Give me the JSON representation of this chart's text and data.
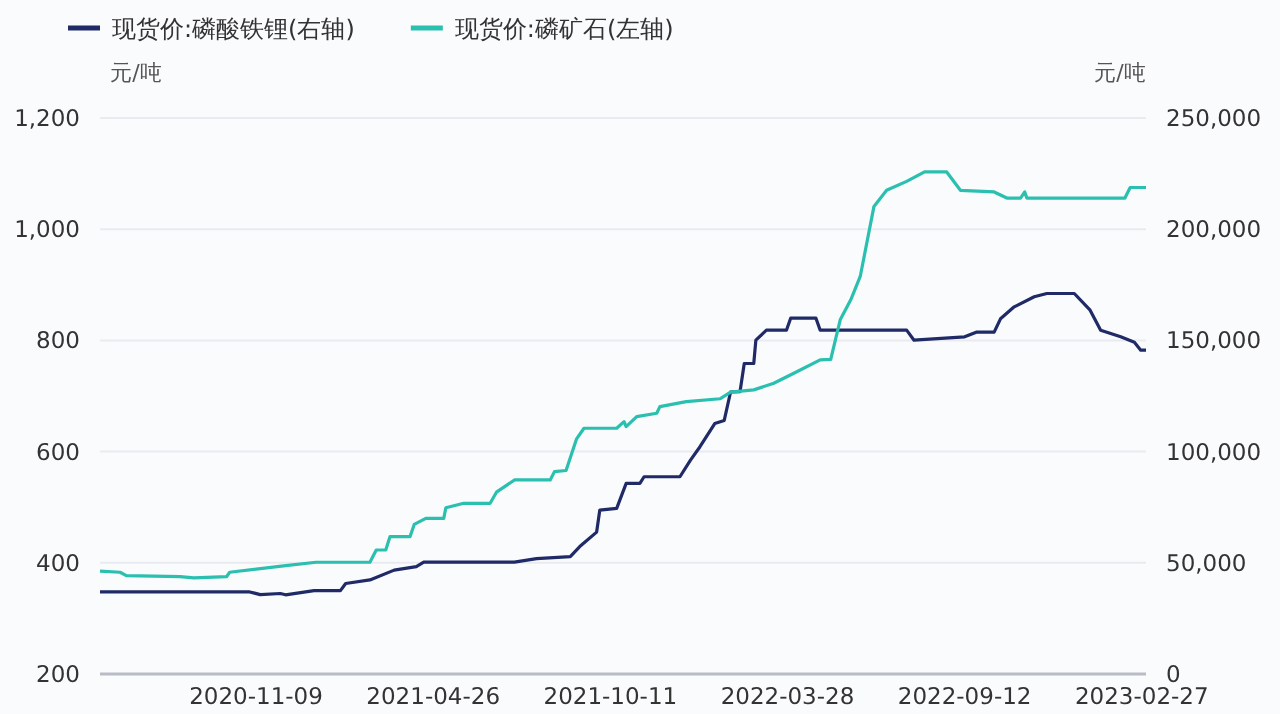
{
  "chart_data": {
    "type": "line",
    "ylabel": "元/吨",
    "y2label": "元/吨",
    "legend": "top left",
    "grid": "y",
    "line_style": "solid",
    "marker": "none",
    "xlim": [
      "2020-06-14",
      "2023-03-03"
    ],
    "xticks": [
      "2020-11-09",
      "2021-04-26",
      "2021-10-11",
      "2022-03-28",
      "2022-09-12",
      "2023-02-27"
    ],
    "ylim": [
      200,
      1200
    ],
    "yticks": [
      200,
      400,
      600,
      800,
      {
        "value": 1000,
        "label": "1,000"
      },
      {
        "value": 1200,
        "label": "1,200"
      }
    ],
    "y2lim": [
      0,
      250000
    ],
    "y2ticks": [
      0,
      {
        "value": 50000,
        "label": "50,000"
      },
      {
        "value": 100000,
        "label": "100,000"
      },
      {
        "value": 150000,
        "label": "150,000"
      },
      {
        "value": 200000,
        "label": "200,000"
      },
      {
        "value": 250000,
        "label": "250,000"
      }
    ],
    "series": [
      {
        "name": "现货价:磷酸铁锂(右轴)",
        "color": "#1f2a66",
        "axis": "y2",
        "x": [
          "2020-06-14",
          "2020-11-03",
          "2020-11-13",
          "2020-12-02",
          "2020-12-07",
          "2021-01-03",
          "2021-01-28",
          "2021-02-02",
          "2021-02-25",
          "2021-03-20",
          "2021-04-10",
          "2021-04-17",
          "2021-07-12",
          "2021-08-02",
          "2021-09-03",
          "2021-09-12",
          "2021-09-28",
          "2021-10-01",
          "2021-10-17",
          "2021-10-26",
          "2021-11-08",
          "2021-11-12",
          "2021-12-16",
          "2021-12-26",
          "2022-01-04",
          "2022-01-18",
          "2022-01-27",
          "2022-02-02",
          "2022-02-11",
          "2022-02-15",
          "2022-02-24",
          "2022-02-26",
          "2022-03-08",
          "2022-03-27",
          "2022-03-31",
          "2022-04-24",
          "2022-04-28",
          "2022-07-19",
          "2022-07-26",
          "2022-09-12",
          "2022-09-23",
          "2022-10-10",
          "2022-10-16",
          "2022-10-29",
          "2022-11-17",
          "2022-11-29",
          "2022-12-25",
          "2023-01-09",
          "2023-01-19",
          "2023-02-07",
          "2023-02-20",
          "2023-02-26",
          "2023-03-03"
        ],
        "values": [
          36900,
          36900,
          35700,
          36200,
          35600,
          37500,
          37500,
          40700,
          42300,
          46700,
          48300,
          50300,
          50300,
          51900,
          52800,
          57300,
          63800,
          73700,
          74500,
          85700,
          85700,
          88700,
          88700,
          96200,
          102200,
          112600,
          114000,
          126800,
          127000,
          139600,
          139600,
          150100,
          154600,
          154600,
          160000,
          160000,
          154600,
          154600,
          150100,
          151600,
          153700,
          153700,
          159700,
          165100,
          169600,
          171100,
          171100,
          163600,
          154600,
          151600,
          149200,
          145600,
          145600
        ]
      },
      {
        "name": "现货价:磷矿石(左轴)",
        "color": "#2bbfb0",
        "x": [
          "2020-06-14",
          "2020-07-03",
          "2020-07-09",
          "2020-08-29",
          "2020-09-11",
          "2020-10-12",
          "2020-10-15",
          "2020-12-07",
          "2021-01-05",
          "2021-02-25",
          "2021-03-03",
          "2021-03-12",
          "2021-03-16",
          "2021-04-04",
          "2021-04-08",
          "2021-04-19",
          "2021-05-06",
          "2021-05-08",
          "2021-05-25",
          "2021-06-19",
          "2021-06-25",
          "2021-07-12",
          "2021-08-15",
          "2021-08-19",
          "2021-08-30",
          "2021-09-09",
          "2021-09-16",
          "2021-10-17",
          "2021-10-24",
          "2021-10-26",
          "2021-11-05",
          "2021-11-24",
          "2021-11-27",
          "2021-12-22",
          "2022-01-23",
          "2022-02-02",
          "2022-02-24",
          "2022-03-15",
          "2022-04-03",
          "2022-04-28",
          "2022-05-08",
          "2022-05-17",
          "2022-05-27",
          "2022-06-05",
          "2022-06-18",
          "2022-06-30",
          "2022-07-19",
          "2022-08-05",
          "2022-08-26",
          "2022-09-08",
          "2022-10-10",
          "2022-10-22",
          "2022-11-04",
          "2022-11-08",
          "2022-11-10",
          "2023-02-11",
          "2023-02-16",
          "2023-03-03"
        ],
        "values": [
          385,
          383,
          377,
          375,
          373,
          375,
          383,
          395,
          401,
          401,
          423,
          423,
          447,
          447,
          469,
          480,
          480,
          499,
          507,
          507,
          527,
          549,
          549,
          564,
          566,
          623,
          642,
          642,
          654,
          645,
          663,
          669,
          681,
          690,
          695,
          707,
          711,
          723,
          741,
          765,
          766,
          837,
          873,
          915,
          1041,
          1070,
          1086,
          1103,
          1103,
          1070,
          1067,
          1056,
          1056,
          1067,
          1056,
          1056,
          1075,
          1075
        ]
      }
    ]
  }
}
